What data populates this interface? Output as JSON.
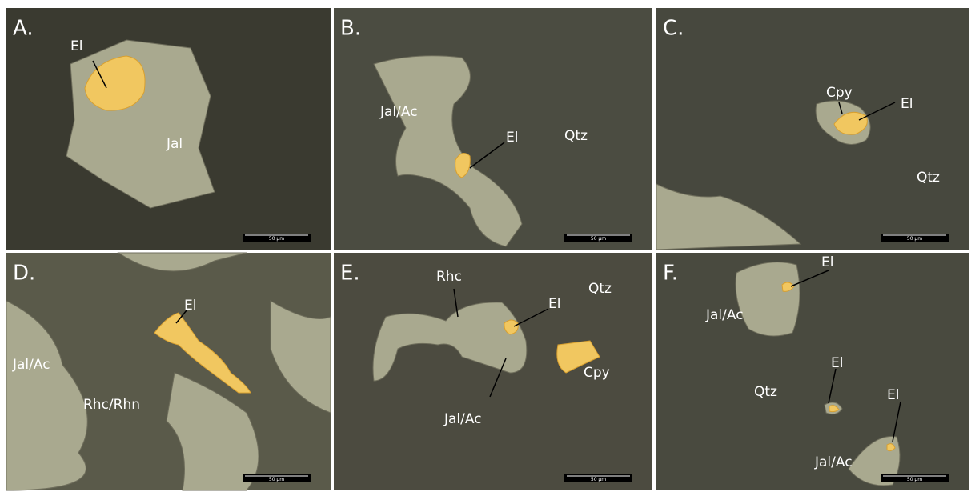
{
  "panels": [
    {
      "letter": "A.",
      "labels": [
        "El",
        "Jal"
      ],
      "scale_bar": "50 µm"
    },
    {
      "letter": "B.",
      "labels": [
        "Jal/Ac",
        "El",
        "Qtz"
      ],
      "scale_bar": "50 µm"
    },
    {
      "letter": "C.",
      "labels": [
        "Cpy",
        "El",
        "Qtz"
      ],
      "scale_bar": "50 µm"
    },
    {
      "letter": "D.",
      "labels": [
        "El",
        "Jal/Ac",
        "Rhc/Rhn"
      ],
      "scale_bar": "50 µm"
    },
    {
      "letter": "E.",
      "labels": [
        "Rhc",
        "Qtz",
        "El",
        "Cpy",
        "Jal/Ac"
      ],
      "scale_bar": "50 µm"
    },
    {
      "letter": "F.",
      "labels": [
        "El",
        "Jal/Ac",
        "El",
        "Qtz",
        "El",
        "Jal/Ac"
      ],
      "scale_bar": "50 µm"
    }
  ]
}
